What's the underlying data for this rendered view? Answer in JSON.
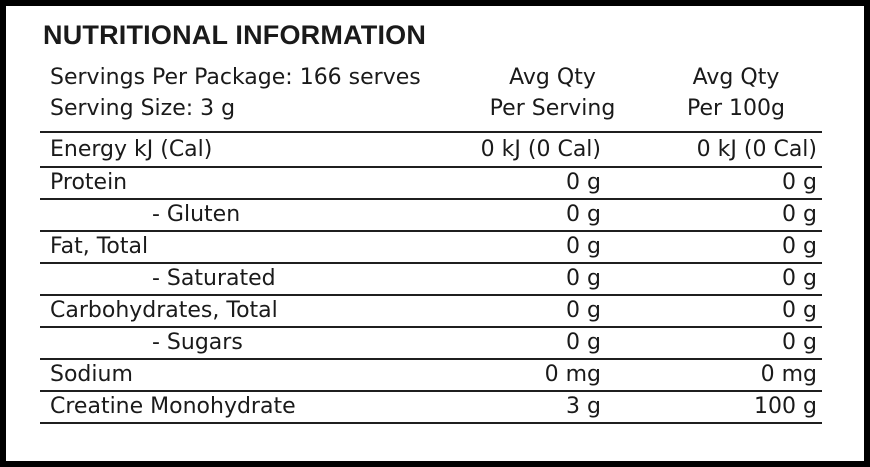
{
  "label": {
    "title": "NUTRITIONAL INFORMATION",
    "package_info": {
      "servings_per_package": "Servings Per Package: 166 serves",
      "serving_size": "Serving Size: 3 g"
    },
    "columns": {
      "per_serving": {
        "line1": "Avg Qty",
        "line2": "Per Serving"
      },
      "per_100g": {
        "line1": "Avg Qty",
        "line2": "Per 100g"
      }
    },
    "rows": [
      {
        "label": "Energy kJ (Cal)",
        "indent": false,
        "per_serving": "0 kJ (0 Cal)",
        "per_100g": "0 kJ (0 Cal)"
      },
      {
        "label": "Protein",
        "indent": false,
        "per_serving": "0 g",
        "per_100g": "0 g"
      },
      {
        "label": "- Gluten",
        "indent": true,
        "per_serving": "0 g",
        "per_100g": "0 g"
      },
      {
        "label": "Fat, Total",
        "indent": false,
        "per_serving": "0 g",
        "per_100g": "0 g"
      },
      {
        "label": "- Saturated",
        "indent": true,
        "per_serving": "0 g",
        "per_100g": "0 g"
      },
      {
        "label": "Carbohydrates, Total",
        "indent": false,
        "per_serving": "0 g",
        "per_100g": "0 g"
      },
      {
        "label": "- Sugars",
        "indent": true,
        "per_serving": "0 g",
        "per_100g": "0 g"
      },
      {
        "label": "Sodium",
        "indent": false,
        "per_serving": "0 mg",
        "per_100g": "0 mg"
      },
      {
        "label": "Creatine Monohydrate",
        "indent": false,
        "per_serving": "3 g",
        "per_100g": "100 g"
      }
    ],
    "colors": {
      "border": "#000000",
      "background": "#ffffff",
      "text": "#1a1a1a",
      "line": "#1f1f1f"
    }
  }
}
